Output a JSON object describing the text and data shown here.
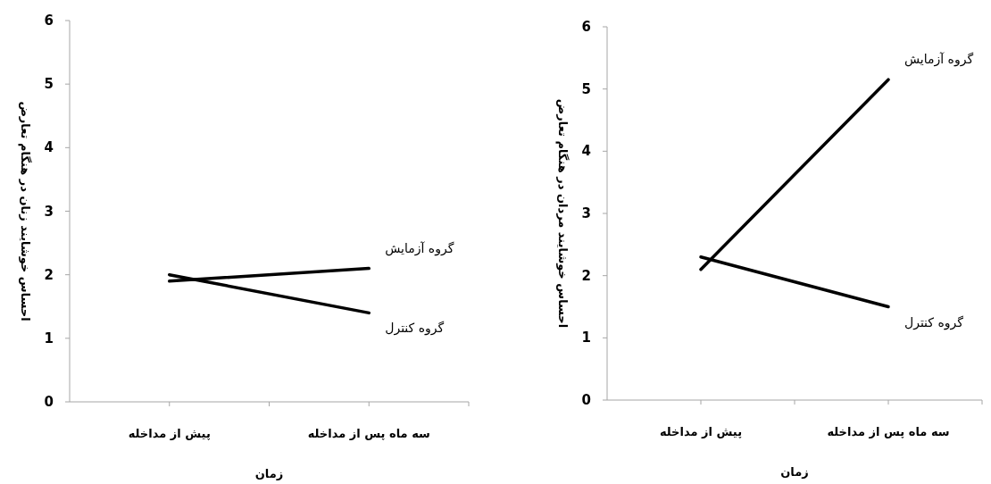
{
  "chart_data": [
    {
      "type": "line",
      "ylabel": "احساس خوشایند زنان در هنگام تعارض",
      "xlabel": "زمان",
      "categories": [
        "پیش از مداخله",
        "سه ماه پس از مداخله"
      ],
      "ylim": [
        0,
        6
      ],
      "yticks": [
        0,
        1,
        2,
        3,
        4,
        5,
        6
      ],
      "grid": false,
      "marker": "none",
      "line_style": "solid",
      "series": [
        {
          "name": "گروه آزمایش",
          "color": "#000000",
          "values": [
            1.9,
            2.1
          ]
        },
        {
          "name": "گروه کنترل",
          "color": "#000000",
          "values": [
            2.0,
            1.4
          ]
        }
      ]
    },
    {
      "type": "line",
      "ylabel": "احساس خوشایند مردان در هنگام تعارض",
      "xlabel": "زمان",
      "categories": [
        "پیش از مداخله",
        "سه ماه پس از مداخله"
      ],
      "ylim": [
        0,
        6
      ],
      "yticks": [
        0,
        1,
        2,
        3,
        4,
        5,
        6
      ],
      "grid": false,
      "marker": "none",
      "line_style": "solid",
      "series": [
        {
          "name": "گروه آزمایش",
          "color": "#000000",
          "values": [
            2.1,
            5.15
          ]
        },
        {
          "name": "گروه کنترل",
          "color": "#000000",
          "values": [
            2.3,
            1.5
          ]
        }
      ]
    }
  ]
}
